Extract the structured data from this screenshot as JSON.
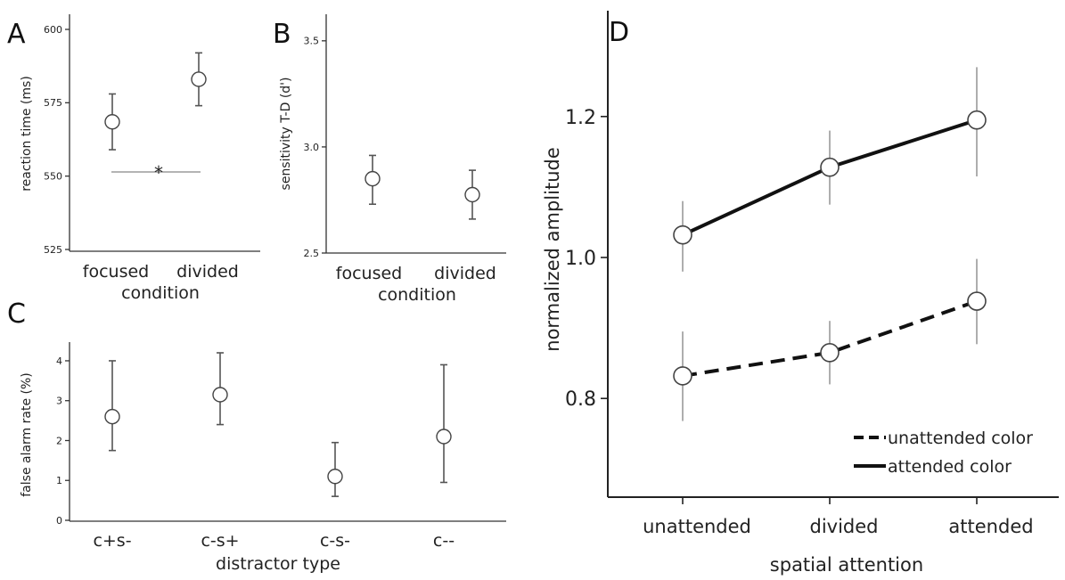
{
  "chart_data": [
    {
      "panel": "A",
      "type": "scatter",
      "xlabel": "condition",
      "ylabel": "reaction time (ms)",
      "categories": [
        "focused",
        "divided"
      ],
      "series": [
        {
          "values": [
            568.5,
            583
          ],
          "error_low": [
            559,
            574
          ],
          "error_high": [
            578,
            592
          ]
        }
      ],
      "ylim": [
        525,
        600
      ],
      "yticks": [
        "525",
        "550",
        "575",
        "600"
      ],
      "annotation": "*"
    },
    {
      "panel": "B",
      "type": "scatter",
      "xlabel": "condition",
      "ylabel": "sensitivity T-D (d')",
      "categories": [
        "focused",
        "divided"
      ],
      "series": [
        {
          "values": [
            2.85,
            2.775
          ],
          "error_low": [
            2.73,
            2.66
          ],
          "error_high": [
            2.96,
            2.89
          ]
        }
      ],
      "ylim": [
        2.5,
        3.6
      ],
      "yticks": [
        "2.5",
        "3.0",
        "3.5"
      ]
    },
    {
      "panel": "C",
      "type": "scatter",
      "xlabel": "distractor type",
      "ylabel": "false alarm rate (%)",
      "categories": [
        "c+s-",
        "c-s+",
        "c-s-",
        "c--"
      ],
      "series": [
        {
          "values": [
            2.6,
            3.15,
            1.1,
            2.1
          ],
          "error_low": [
            1.75,
            2.4,
            0.6,
            0.95
          ],
          "error_high": [
            4.0,
            4.2,
            1.95,
            3.9
          ]
        }
      ],
      "ylim": [
        0,
        4.2
      ],
      "yticks": [
        "0",
        "1",
        "2",
        "3",
        "4"
      ]
    },
    {
      "panel": "D",
      "type": "line",
      "xlabel": "spatial attention",
      "ylabel": "normalized amplitude",
      "categories": [
        "unattended",
        "divided",
        "attended"
      ],
      "series": [
        {
          "name": "attended color",
          "style": "solid",
          "values": [
            1.032,
            1.128,
            1.195
          ],
          "error_low": [
            0.98,
            1.075,
            1.115
          ],
          "error_high": [
            1.08,
            1.18,
            1.27
          ]
        },
        {
          "name": "unattended color",
          "style": "dashed",
          "values": [
            0.832,
            0.865,
            0.938
          ],
          "error_low": [
            0.768,
            0.82,
            0.877
          ],
          "error_high": [
            0.895,
            0.91,
            0.998
          ]
        }
      ],
      "ylim": [
        0.66,
        1.34
      ],
      "yticks": [
        "0.8",
        "1.0",
        "1.2"
      ],
      "legend": "bottom-right",
      "legend_order": [
        "unattended color",
        "attended color"
      ]
    }
  ],
  "colors": {
    "ink": "#222222",
    "marker_fill": "#ffffff",
    "axis": "#333333",
    "errbar": "#555555"
  }
}
